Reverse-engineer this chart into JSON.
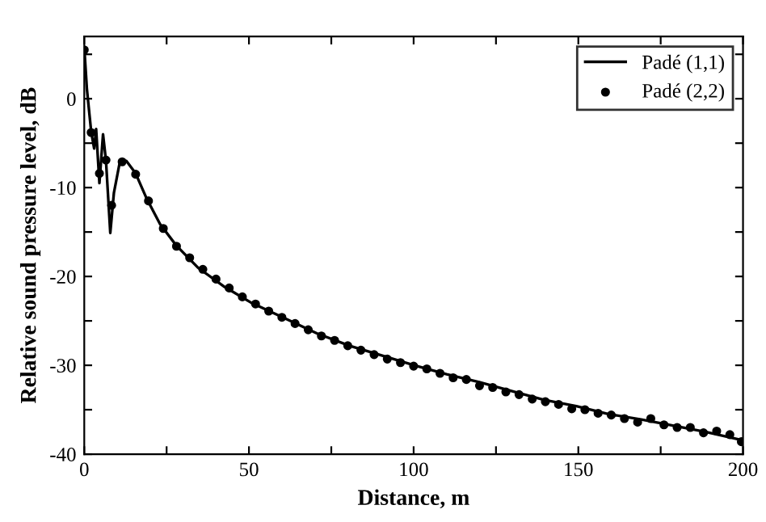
{
  "chart_data": {
    "type": "line",
    "xlabel": "Distance, m",
    "ylabel": "Relative sound pressure level, dB",
    "xlim": [
      0,
      200
    ],
    "ylim": [
      -40,
      7
    ],
    "xticks": [
      0,
      {
        "value": 25,
        "label": null
      },
      50,
      {
        "value": 75,
        "label": null
      },
      100,
      {
        "value": 125,
        "label": null
      },
      150,
      {
        "value": 175,
        "label": null
      },
      200
    ],
    "yticks": [
      -40,
      {
        "value": -35,
        "label": null
      },
      -30,
      {
        "value": -25,
        "label": null
      },
      -20,
      {
        "value": -15,
        "label": null
      },
      -10,
      {
        "value": -5,
        "label": null
      },
      0,
      {
        "value": 5,
        "label": null
      }
    ],
    "legend": "top right",
    "grid": false,
    "series": [
      {
        "name": "Padé (1,1)",
        "color": "#000000",
        "line_style": "solid",
        "marker": "none",
        "x": [
          0,
          0.8,
          2.1,
          3.0,
          3.6,
          4.6,
          5.7,
          6.6,
          7.9,
          9.0,
          10.7,
          12.8,
          15.6,
          18.9,
          23.0,
          27.9,
          34.5,
          42.7,
          50.9,
          60.8,
          70.6,
          80.5,
          90.3,
          100.2,
          110,
          119.9,
          129.7,
          139.6,
          149.4,
          159.3,
          169.1,
          179,
          188.8,
          199.5
        ],
        "values": [
          5.8,
          1.1,
          -3.7,
          -5.6,
          -3.4,
          -9.5,
          -4.0,
          -7.0,
          -15.1,
          -10.6,
          -7.3,
          -7.0,
          -8.4,
          -11.2,
          -14.1,
          -16.5,
          -19.0,
          -21.2,
          -23.0,
          -24.7,
          -26.4,
          -27.8,
          -28.9,
          -30.0,
          -31.0,
          -31.9,
          -32.9,
          -33.9,
          -34.6,
          -35.5,
          -36.1,
          -36.8,
          -37.5,
          -38.4
        ]
      },
      {
        "name": "Padé (2,2)",
        "type": "scatter",
        "color": "#000000",
        "marker": "circle",
        "x": [
          0,
          2.1,
          4.6,
          6.6,
          8.3,
          11.5,
          15.6,
          19.5,
          24,
          28,
          32,
          36,
          40,
          44,
          48,
          52,
          56,
          60,
          64,
          68,
          72,
          76,
          80,
          84,
          88,
          92,
          96,
          100,
          104,
          108,
          112,
          116,
          120,
          124,
          128,
          132,
          136,
          140,
          144,
          148,
          152,
          156,
          160,
          164,
          168,
          172,
          176,
          180,
          184,
          188,
          192,
          196,
          199.5
        ],
        "values": [
          5.5,
          -3.8,
          -8.4,
          -6.9,
          -12.0,
          -7.1,
          -8.5,
          -11.5,
          -14.6,
          -16.6,
          -17.9,
          -19.2,
          -20.3,
          -21.3,
          -22.3,
          -23.1,
          -23.9,
          -24.6,
          -25.3,
          -26.0,
          -26.7,
          -27.2,
          -27.8,
          -28.3,
          -28.8,
          -29.3,
          -29.7,
          -30.1,
          -30.4,
          -30.9,
          -31.4,
          -31.6,
          -32.3,
          -32.5,
          -33.0,
          -33.3,
          -33.8,
          -34.1,
          -34.4,
          -34.9,
          -35.0,
          -35.4,
          -35.6,
          -36.0,
          -36.4,
          -36.0,
          -36.7,
          -37.0,
          -37.0,
          -37.6,
          -37.4,
          -37.8,
          -38.6
        ]
      }
    ]
  }
}
